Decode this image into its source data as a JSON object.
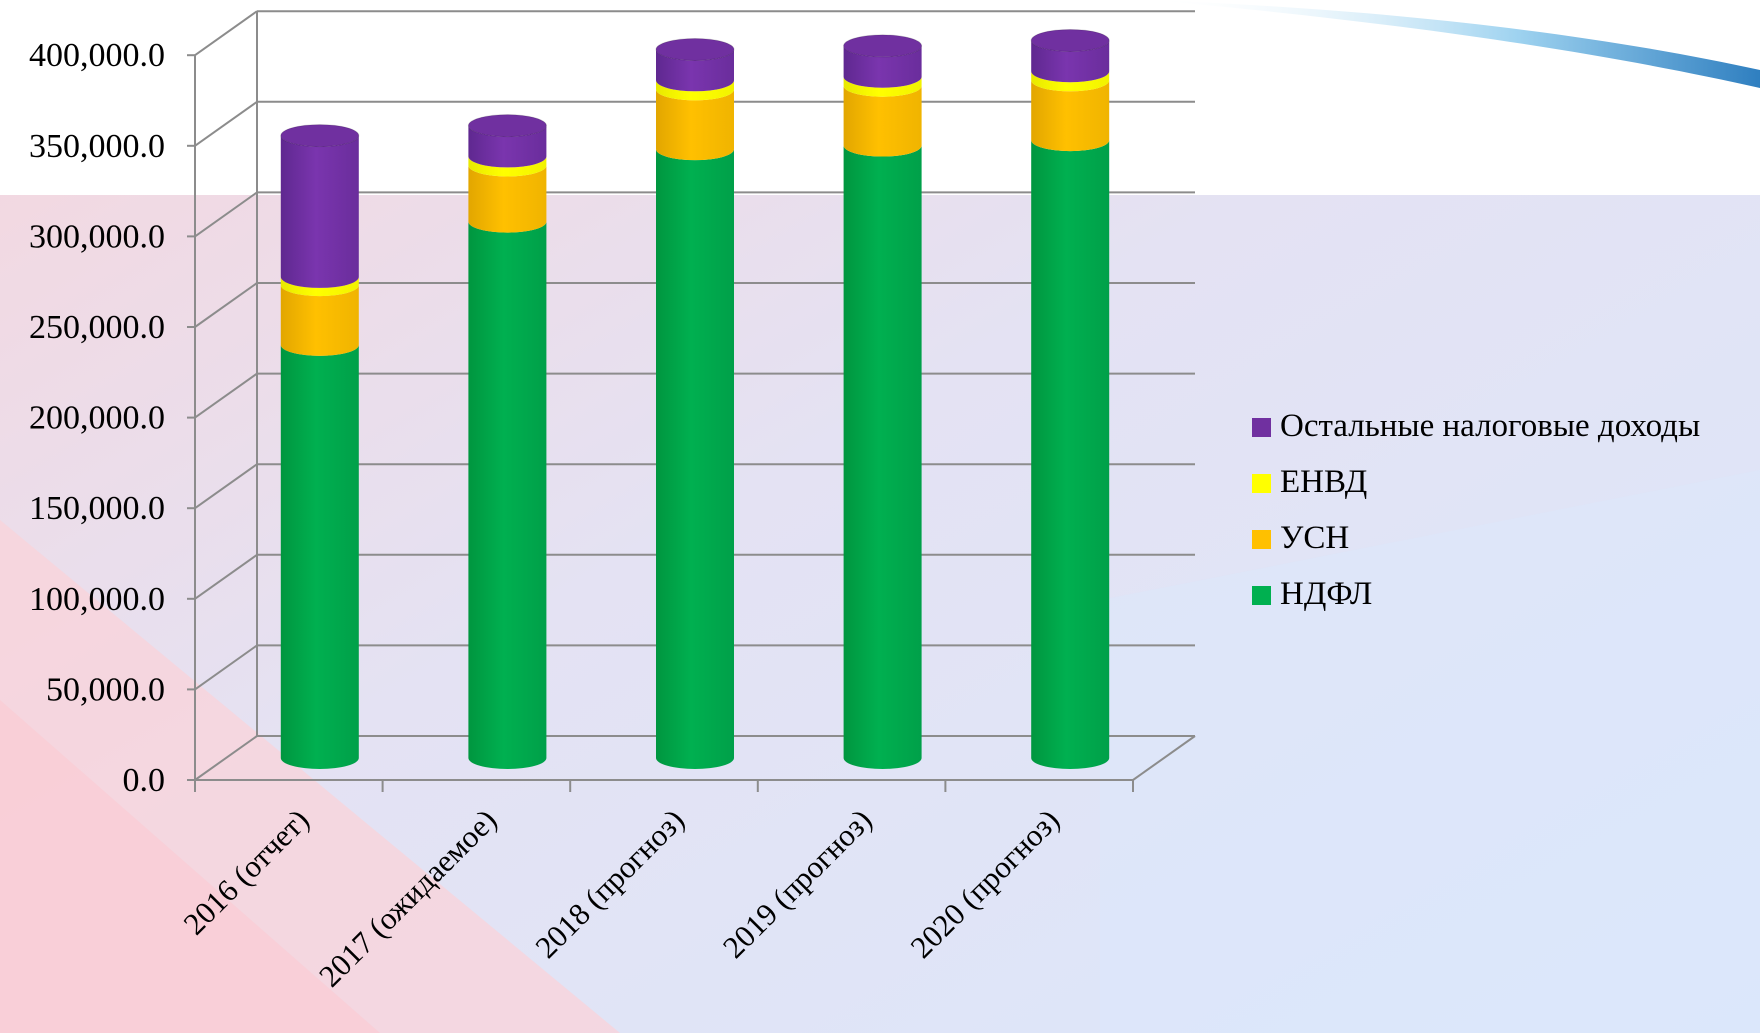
{
  "colors": {
    "ndfl": "#00b050",
    "usn": "#ffc000",
    "envd": "#ffff00",
    "other": "#7030a0",
    "gridline": "#8c8c8c"
  },
  "chart_data": {
    "type": "bar",
    "stacked": true,
    "three_d": true,
    "bar_shape": "cylinder",
    "categories": [
      "2016 (отчет)",
      "2017 (ожидаемое)",
      "2018 (прогноз)",
      "2019 (прогноз)",
      "2020 (прогноз)"
    ],
    "series": [
      {
        "name": "НДФЛ",
        "color_key": "ndfl",
        "values": [
          228000,
          296000,
          336000,
          338000,
          341000
        ]
      },
      {
        "name": "УСН",
        "color_key": "usn",
        "values": [
          33000,
          31000,
          33000,
          33000,
          33000
        ]
      },
      {
        "name": "ЕНВД",
        "color_key": "envd",
        "values": [
          4500,
          5000,
          5000,
          5000,
          5000
        ]
      },
      {
        "name": "Остальные налоговые доходы",
        "color_key": "other",
        "values": [
          78000,
          17000,
          17000,
          17000,
          17000
        ]
      }
    ],
    "legend_order": [
      "Остальные налоговые доходы",
      "ЕНВД",
      "УСН",
      "НДФЛ"
    ],
    "yticks": [
      "0.0",
      "50,000.0",
      "100,000.0",
      "150,000.0",
      "200,000.0",
      "250,000.0",
      "300,000.0",
      "350,000.0",
      "400,000.0"
    ],
    "ylim": [
      0,
      400000
    ],
    "grid": true,
    "legend_position": "right"
  }
}
